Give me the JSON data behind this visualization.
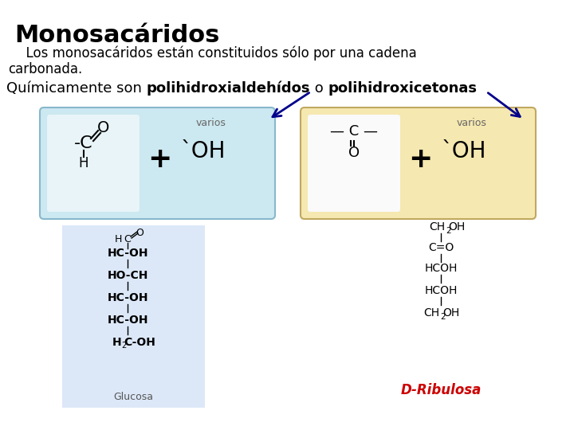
{
  "background_color": "#ffffff",
  "title": "Monosacáridos",
  "body_text1": "  Los monosacáridos están constituidos sólo por una cadena",
  "body_text2": "carbonada.",
  "quim_normal1": "Químicamente son ",
  "quim_bold1": "polihidroxialdehídos",
  "quim_normal2": " o ",
  "quim_bold2": "polihidroxicetonas",
  "box1_color": "#cce8f0",
  "box1_edge": "#88b8cc",
  "box2_color": "#f5e8b0",
  "box2_edge": "#c0a860",
  "varios_color": "#666666",
  "arrow_color": "#00008b",
  "glucose_bg": "#dce8f8",
  "dribulosa_color": "#cc0000",
  "plus_color": "#000000",
  "text_color": "#000000"
}
